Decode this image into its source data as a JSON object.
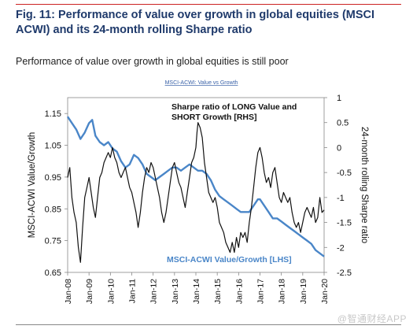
{
  "figure": {
    "title": "Fig. 11:  Performance of value over growth in global equities (MSCI ACWI) and its 24-month rolling Sharpe ratio",
    "subtitle": "Performance of value over growth in global equities is still poor"
  },
  "watermark": "@智通财经APP",
  "chart_data": {
    "type": "line",
    "title": "MSCI-ACWI: Value vs Growth",
    "xlabel": "",
    "ylabel_left": "MSCI-ACWI Value/Growth",
    "ylabel_right": "24-month rolling Sharpe ratio",
    "x_ticks": [
      "Jan-08",
      "Jan-09",
      "Jan-10",
      "Jan-11",
      "Jan-12",
      "Jan-13",
      "Jan-14",
      "Jan-15",
      "Jan-16",
      "Jan-17",
      "Jan-18",
      "Jan-19",
      "Jan-20"
    ],
    "x_range": [
      2008.0,
      2020.0
    ],
    "ylim_left": [
      0.65,
      1.2
    ],
    "yticks_left": [
      "0.65",
      "0.75",
      "0.85",
      "0.95",
      "1.05",
      "1.15"
    ],
    "ylim_right": [
      -2.5,
      1.0
    ],
    "yticks_right": [
      "-2.5",
      "-2",
      "-1.5",
      "-1",
      "-0.5",
      "0",
      "0.5",
      "1"
    ],
    "grid": false,
    "series": [
      {
        "name": "MSCI-ACWI Value/Growth [LHS]",
        "axis": "left",
        "color": "#4a86c8",
        "points": [
          [
            2008.0,
            1.14
          ],
          [
            2008.2,
            1.12
          ],
          [
            2008.4,
            1.1
          ],
          [
            2008.6,
            1.07
          ],
          [
            2008.8,
            1.09
          ],
          [
            2009.0,
            1.12
          ],
          [
            2009.15,
            1.13
          ],
          [
            2009.3,
            1.08
          ],
          [
            2009.5,
            1.06
          ],
          [
            2009.7,
            1.05
          ],
          [
            2009.9,
            1.06
          ],
          [
            2010.1,
            1.04
          ],
          [
            2010.3,
            1.03
          ],
          [
            2010.5,
            1.0
          ],
          [
            2010.7,
            0.98
          ],
          [
            2010.9,
            0.99
          ],
          [
            2011.1,
            1.02
          ],
          [
            2011.3,
            1.01
          ],
          [
            2011.5,
            0.99
          ],
          [
            2011.7,
            0.96
          ],
          [
            2011.9,
            0.95
          ],
          [
            2012.1,
            0.94
          ],
          [
            2012.3,
            0.95
          ],
          [
            2012.5,
            0.96
          ],
          [
            2012.7,
            0.97
          ],
          [
            2012.9,
            0.98
          ],
          [
            2013.1,
            0.98
          ],
          [
            2013.3,
            0.97
          ],
          [
            2013.5,
            0.98
          ],
          [
            2013.7,
            0.99
          ],
          [
            2013.9,
            0.98
          ],
          [
            2014.1,
            0.97
          ],
          [
            2014.3,
            0.97
          ],
          [
            2014.5,
            0.96
          ],
          [
            2014.7,
            0.94
          ],
          [
            2014.9,
            0.91
          ],
          [
            2015.1,
            0.89
          ],
          [
            2015.3,
            0.88
          ],
          [
            2015.5,
            0.87
          ],
          [
            2015.7,
            0.86
          ],
          [
            2015.9,
            0.85
          ],
          [
            2016.1,
            0.84
          ],
          [
            2016.3,
            0.84
          ],
          [
            2016.5,
            0.84
          ],
          [
            2016.7,
            0.86
          ],
          [
            2016.9,
            0.88
          ],
          [
            2017.0,
            0.88
          ],
          [
            2017.2,
            0.86
          ],
          [
            2017.4,
            0.84
          ],
          [
            2017.6,
            0.82
          ],
          [
            2017.8,
            0.82
          ],
          [
            2018.0,
            0.81
          ],
          [
            2018.2,
            0.8
          ],
          [
            2018.4,
            0.79
          ],
          [
            2018.6,
            0.78
          ],
          [
            2018.8,
            0.77
          ],
          [
            2019.0,
            0.76
          ],
          [
            2019.2,
            0.75
          ],
          [
            2019.4,
            0.74
          ],
          [
            2019.6,
            0.72
          ],
          [
            2019.8,
            0.71
          ],
          [
            2020.0,
            0.7
          ]
        ]
      },
      {
        "name": "Sharpe ratio of LONG Value and SHORT Growth [RHS]",
        "axis": "right",
        "color": "#111111",
        "points": [
          [
            2008.0,
            -0.6
          ],
          [
            2008.1,
            -0.4
          ],
          [
            2008.2,
            -1.0
          ],
          [
            2008.3,
            -1.3
          ],
          [
            2008.4,
            -1.5
          ],
          [
            2008.5,
            -2.0
          ],
          [
            2008.6,
            -2.3
          ],
          [
            2008.7,
            -1.6
          ],
          [
            2008.8,
            -1.0
          ],
          [
            2008.9,
            -0.8
          ],
          [
            2009.0,
            -0.6
          ],
          [
            2009.1,
            -0.9
          ],
          [
            2009.2,
            -1.2
          ],
          [
            2009.3,
            -1.4
          ],
          [
            2009.4,
            -1.0
          ],
          [
            2009.5,
            -0.6
          ],
          [
            2009.6,
            -0.5
          ],
          [
            2009.7,
            -0.3
          ],
          [
            2009.8,
            -0.2
          ],
          [
            2009.9,
            -0.1
          ],
          [
            2010.0,
            -0.2
          ],
          [
            2010.1,
            0.0
          ],
          [
            2010.2,
            -0.2
          ],
          [
            2010.3,
            -0.3
          ],
          [
            2010.4,
            -0.5
          ],
          [
            2010.5,
            -0.6
          ],
          [
            2010.6,
            -0.5
          ],
          [
            2010.7,
            -0.4
          ],
          [
            2010.8,
            -0.6
          ],
          [
            2010.9,
            -0.8
          ],
          [
            2011.0,
            -0.9
          ],
          [
            2011.1,
            -1.1
          ],
          [
            2011.2,
            -1.3
          ],
          [
            2011.3,
            -1.6
          ],
          [
            2011.4,
            -1.3
          ],
          [
            2011.5,
            -0.9
          ],
          [
            2011.6,
            -0.6
          ],
          [
            2011.7,
            -0.4
          ],
          [
            2011.8,
            -0.5
          ],
          [
            2011.9,
            -0.3
          ],
          [
            2012.0,
            -0.4
          ],
          [
            2012.1,
            -0.6
          ],
          [
            2012.2,
            -0.8
          ],
          [
            2012.3,
            -1.0
          ],
          [
            2012.4,
            -1.3
          ],
          [
            2012.5,
            -1.5
          ],
          [
            2012.6,
            -1.3
          ],
          [
            2012.7,
            -1.0
          ],
          [
            2012.8,
            -0.7
          ],
          [
            2012.9,
            -0.4
          ],
          [
            2013.0,
            -0.3
          ],
          [
            2013.1,
            -0.5
          ],
          [
            2013.2,
            -0.7
          ],
          [
            2013.3,
            -0.8
          ],
          [
            2013.4,
            -1.0
          ],
          [
            2013.5,
            -1.2
          ],
          [
            2013.6,
            -0.9
          ],
          [
            2013.7,
            -0.6
          ],
          [
            2013.8,
            -0.3
          ],
          [
            2013.9,
            -0.2
          ],
          [
            2014.0,
            0.0
          ],
          [
            2014.05,
            0.3
          ],
          [
            2014.1,
            0.5
          ],
          [
            2014.2,
            0.4
          ],
          [
            2014.3,
            0.2
          ],
          [
            2014.4,
            -0.3
          ],
          [
            2014.5,
            -0.6
          ],
          [
            2014.6,
            -0.9
          ],
          [
            2014.7,
            -1.0
          ],
          [
            2014.8,
            -1.1
          ],
          [
            2014.9,
            -1.0
          ],
          [
            2015.0,
            -1.2
          ],
          [
            2015.1,
            -1.5
          ],
          [
            2015.2,
            -1.6
          ],
          [
            2015.3,
            -1.7
          ],
          [
            2015.4,
            -1.9
          ],
          [
            2015.5,
            -2.0
          ],
          [
            2015.6,
            -2.1
          ],
          [
            2015.7,
            -1.9
          ],
          [
            2015.8,
            -2.1
          ],
          [
            2015.9,
            -1.8
          ],
          [
            2016.0,
            -2.0
          ],
          [
            2016.1,
            -1.7
          ],
          [
            2016.2,
            -1.8
          ],
          [
            2016.3,
            -1.7
          ],
          [
            2016.4,
            -1.9
          ],
          [
            2016.5,
            -1.5
          ],
          [
            2016.6,
            -1.2
          ],
          [
            2016.7,
            -0.8
          ],
          [
            2016.8,
            -0.4
          ],
          [
            2016.9,
            -0.1
          ],
          [
            2017.0,
            0.0
          ],
          [
            2017.1,
            -0.2
          ],
          [
            2017.2,
            -0.5
          ],
          [
            2017.3,
            -0.7
          ],
          [
            2017.4,
            -0.6
          ],
          [
            2017.5,
            -0.8
          ],
          [
            2017.6,
            -0.5
          ],
          [
            2017.7,
            -0.4
          ],
          [
            2017.8,
            -0.7
          ],
          [
            2017.9,
            -1.0
          ],
          [
            2018.0,
            -1.1
          ],
          [
            2018.1,
            -0.9
          ],
          [
            2018.2,
            -1.0
          ],
          [
            2018.3,
            -1.1
          ],
          [
            2018.4,
            -1.0
          ],
          [
            2018.5,
            -1.3
          ],
          [
            2018.6,
            -1.5
          ],
          [
            2018.7,
            -1.6
          ],
          [
            2018.8,
            -1.5
          ],
          [
            2018.9,
            -1.7
          ],
          [
            2019.0,
            -1.5
          ],
          [
            2019.1,
            -1.3
          ],
          [
            2019.2,
            -1.2
          ],
          [
            2019.3,
            -1.3
          ],
          [
            2019.4,
            -1.4
          ],
          [
            2019.5,
            -1.2
          ],
          [
            2019.6,
            -1.5
          ],
          [
            2019.7,
            -1.4
          ],
          [
            2019.8,
            -1.0
          ],
          [
            2019.9,
            -1.3
          ],
          [
            2020.0,
            -1.25
          ]
        ]
      }
    ]
  }
}
